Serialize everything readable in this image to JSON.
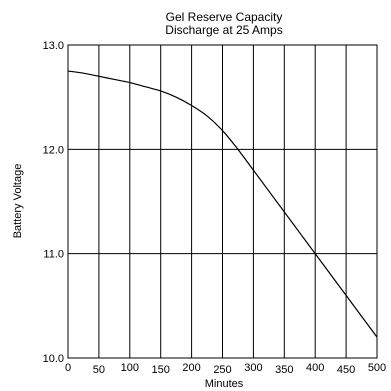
{
  "chart_data": {
    "type": "line",
    "title": "Gel Reserve Capacity",
    "subtitle": "Discharge at 25 Amps",
    "xlabel": "Minutes",
    "ylabel": "Battery Voltage",
    "xlim": [
      0,
      500
    ],
    "ylim": [
      10.0,
      13.0
    ],
    "x_ticks": [
      "0",
      "50",
      "100",
      "150",
      "200",
      "250",
      "300",
      "350",
      "400",
      "450",
      "500"
    ],
    "y_ticks": [
      "10.0",
      "11.0",
      "12.0",
      "13.0"
    ],
    "grid": true,
    "series": [
      {
        "x": [
          0,
          25,
          50,
          75,
          100,
          125,
          150,
          175,
          200,
          225,
          250,
          275,
          300,
          325,
          350,
          375,
          400,
          425,
          450,
          475,
          500
        ],
        "y": [
          12.75,
          12.73,
          12.7,
          12.67,
          12.64,
          12.6,
          12.56,
          12.5,
          12.42,
          12.32,
          12.18,
          12.0,
          11.8,
          11.6,
          11.4,
          11.2,
          11.0,
          10.8,
          10.6,
          10.4,
          10.2
        ]
      }
    ]
  }
}
